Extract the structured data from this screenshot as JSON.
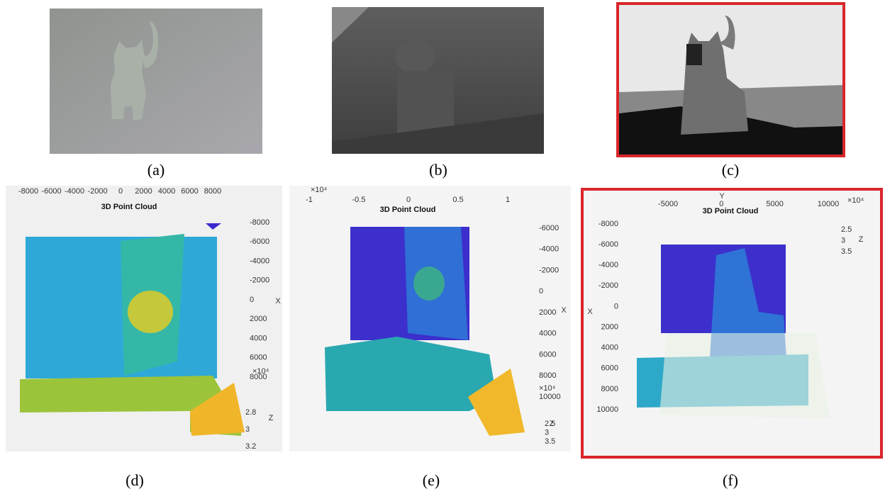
{
  "captions": [
    "(a)",
    "(b)",
    "(c)",
    "(d)",
    "(e)",
    "(f)"
  ],
  "plots": [
    {
      "title": "3D Point Cloud",
      "top_ticks": [
        "-8000",
        "-6000",
        "-4000",
        "-2000",
        "0",
        "2000",
        "4000",
        "6000",
        "8000"
      ],
      "side_ticks": [
        "-8000",
        "-6000",
        "-4000",
        "-2000",
        "0",
        "2000",
        "4000",
        "6000",
        "8000"
      ],
      "side_label": "X",
      "exponent": "×10⁴",
      "z_ticks": [
        "2.8",
        "3",
        "3.2"
      ],
      "z_label": "Z"
    },
    {
      "title": "3D Point Cloud",
      "top_exponent": "×10⁴",
      "top_ticks": [
        "-1",
        "-0.5",
        "0",
        "0.5",
        "1"
      ],
      "side_ticks": [
        "-6000",
        "-4000",
        "-2000",
        "0",
        "2000",
        "4000",
        "6000",
        "8000",
        "10000"
      ],
      "side_label": "X",
      "exponent": "×10⁴",
      "z_ticks": [
        "2.5",
        "3",
        "3.5"
      ],
      "z_label": "Z"
    },
    {
      "title": "3D Point Cloud",
      "top_label": "Y",
      "top_exponent": "×10⁴",
      "top_ticks": [
        "-5000",
        "0",
        "5000",
        "10000"
      ],
      "side_ticks": [
        "-8000",
        "-6000",
        "-4000",
        "-2000",
        "0",
        "2000",
        "4000",
        "6000",
        "8000",
        "10000"
      ],
      "side_label": "X",
      "z_ticks": [
        "2.5",
        "3",
        "3.5"
      ],
      "z_label": "Z"
    }
  ]
}
